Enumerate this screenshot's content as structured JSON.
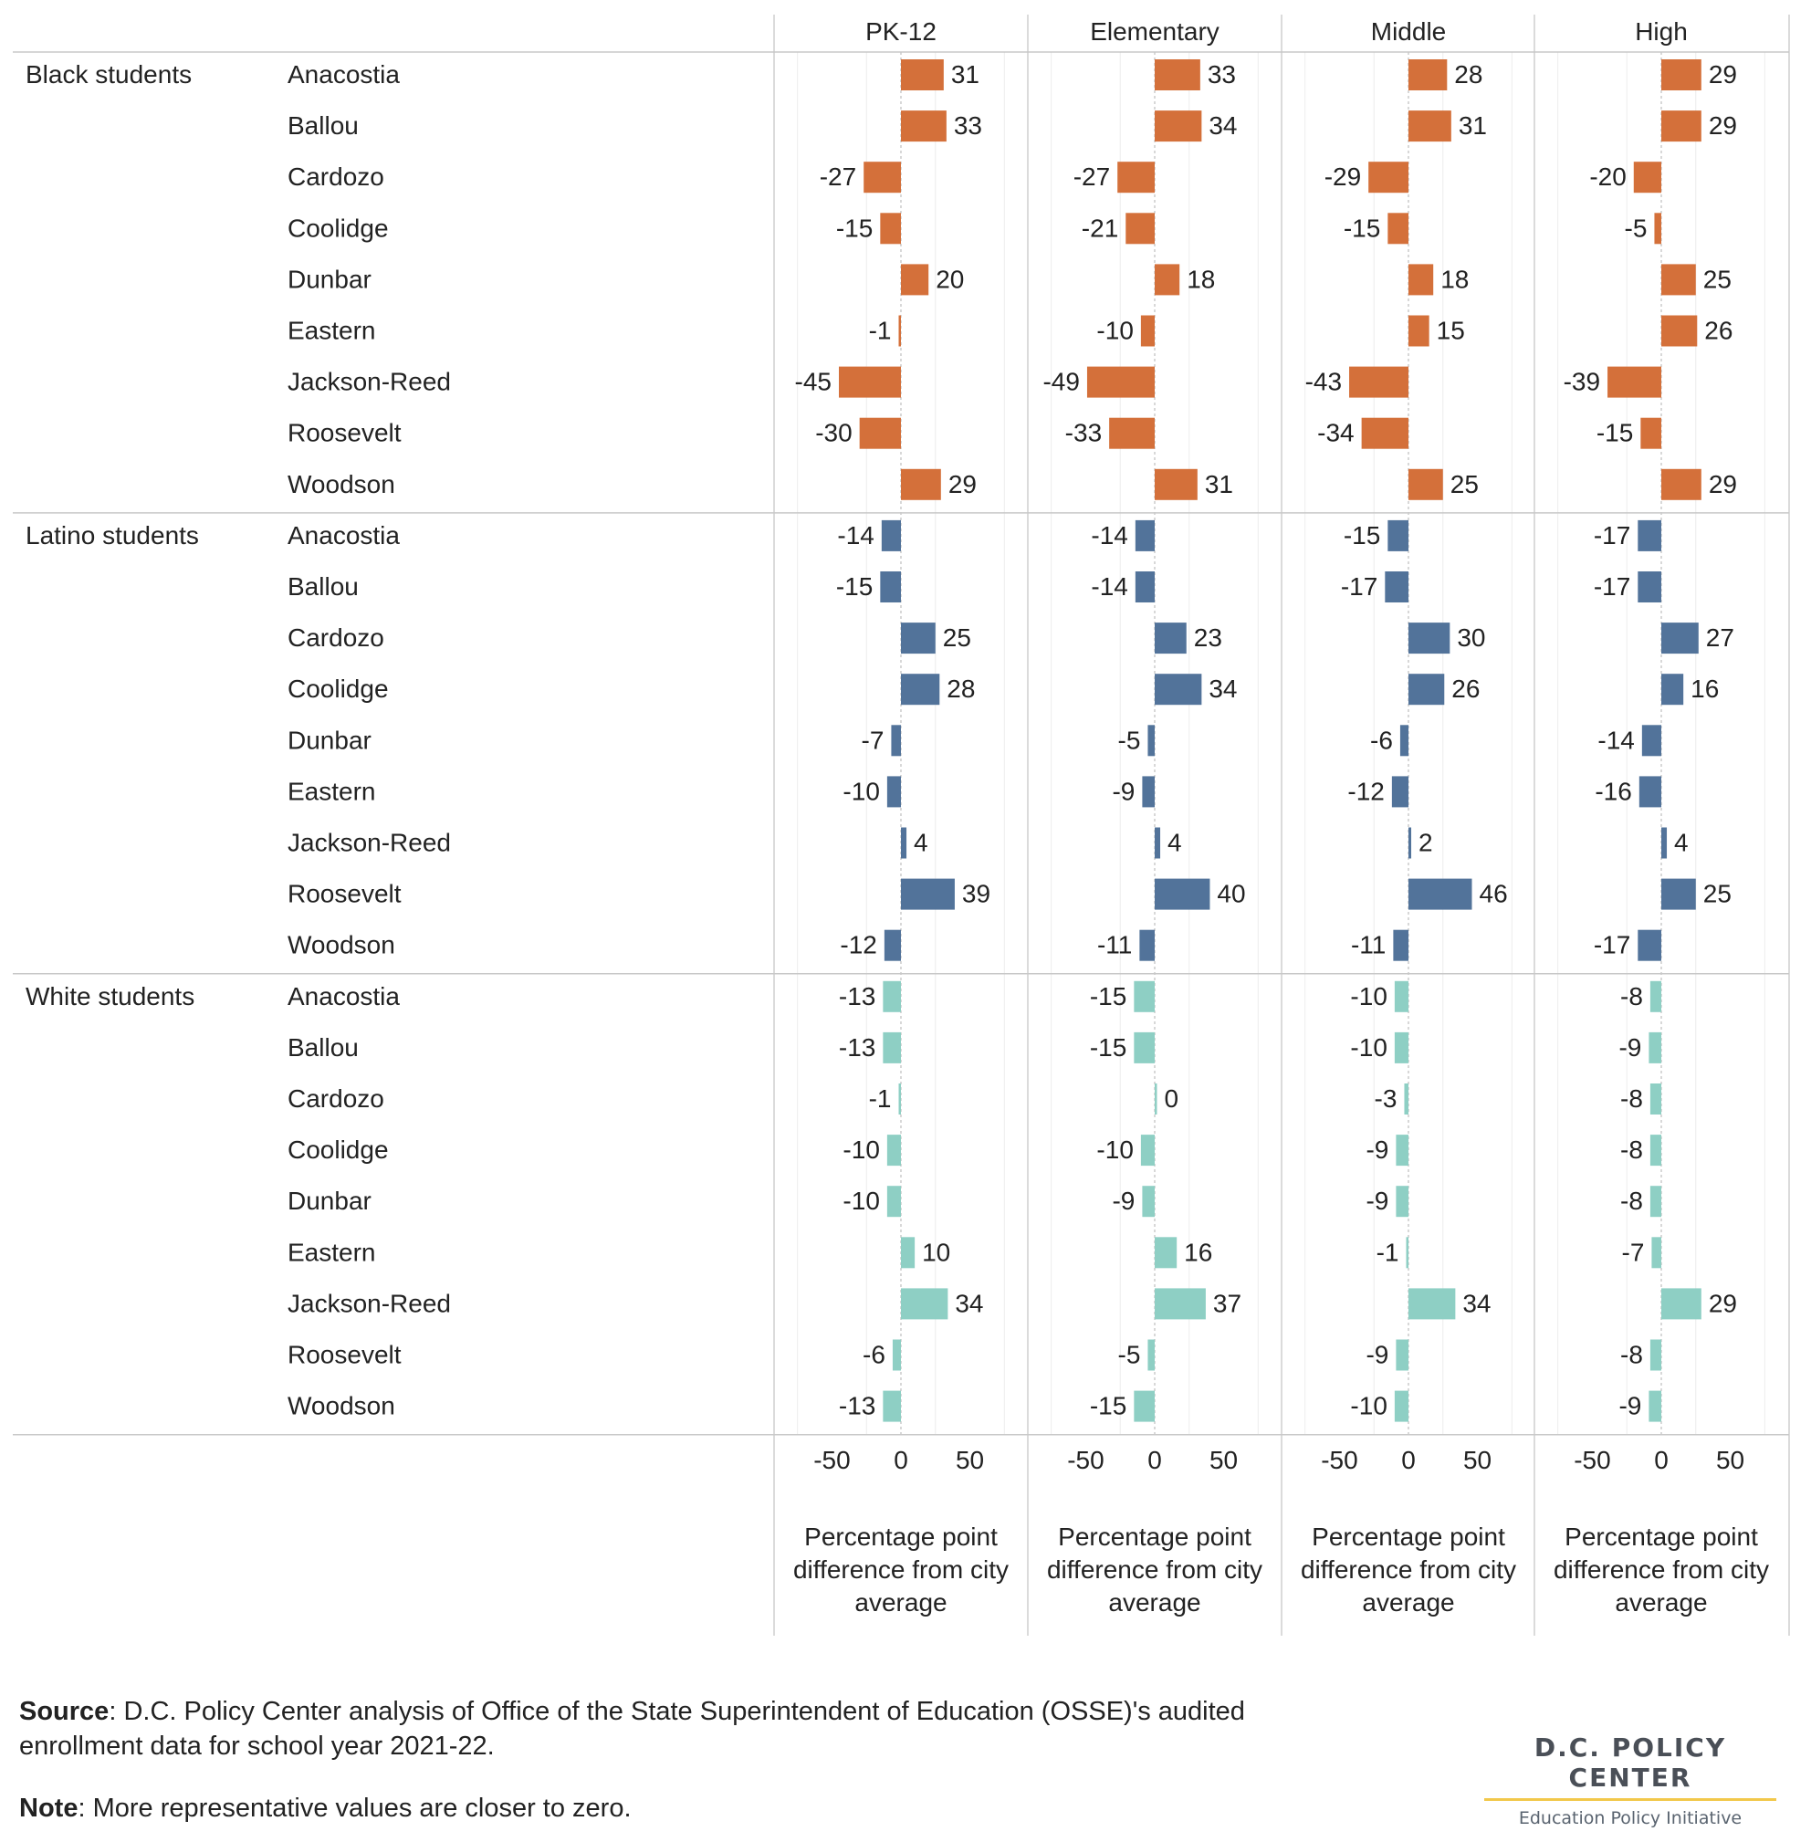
{
  "chart_data": {
    "type": "bar",
    "orientation": "horizontal",
    "panels": [
      "PK-12",
      "Elementary",
      "Middle",
      "High"
    ],
    "groups": [
      {
        "name": "Black students",
        "color": "#d4703a",
        "schools": [
          "Anacostia",
          "Ballou",
          "Cardozo",
          "Coolidge",
          "Dunbar",
          "Eastern",
          "Jackson-Reed",
          "Roosevelt",
          "Woodson"
        ],
        "values": {
          "PK-12": [
            31,
            33,
            -27,
            -15,
            20,
            -1,
            -45,
            -30,
            29
          ],
          "Elementary": [
            33,
            34,
            -27,
            -21,
            18,
            -10,
            -49,
            -33,
            31
          ],
          "Middle": [
            28,
            31,
            -29,
            -15,
            18,
            15,
            -43,
            -34,
            25
          ],
          "High": [
            29,
            29,
            -20,
            -5,
            25,
            26,
            -39,
            -15,
            29
          ]
        }
      },
      {
        "name": "Latino students",
        "color": "#52739a",
        "schools": [
          "Anacostia",
          "Ballou",
          "Cardozo",
          "Coolidge",
          "Dunbar",
          "Eastern",
          "Jackson-Reed",
          "Roosevelt",
          "Woodson"
        ],
        "values": {
          "PK-12": [
            -14,
            -15,
            25,
            28,
            -7,
            -10,
            4,
            39,
            -12
          ],
          "Elementary": [
            -14,
            -14,
            23,
            34,
            -5,
            -9,
            4,
            40,
            -11
          ],
          "Middle": [
            -15,
            -17,
            30,
            26,
            -6,
            -12,
            2,
            46,
            -11
          ],
          "High": [
            -17,
            -17,
            27,
            16,
            -14,
            -16,
            4,
            25,
            -17
          ]
        }
      },
      {
        "name": "White students",
        "color": "#8ecfc4",
        "schools": [
          "Anacostia",
          "Ballou",
          "Cardozo",
          "Coolidge",
          "Dunbar",
          "Eastern",
          "Jackson-Reed",
          "Roosevelt",
          "Woodson"
        ],
        "values": {
          "PK-12": [
            -13,
            -13,
            -1,
            -10,
            -10,
            10,
            34,
            -6,
            -13
          ],
          "Elementary": [
            -15,
            -15,
            0,
            -10,
            -9,
            16,
            37,
            -5,
            -15
          ],
          "Middle": [
            -10,
            -10,
            -3,
            -9,
            -9,
            -1,
            34,
            -9,
            -10
          ],
          "High": [
            -8,
            -9,
            -8,
            -8,
            -8,
            -7,
            29,
            -8,
            -9
          ]
        }
      }
    ],
    "xlim": [
      -92,
      92
    ],
    "xticks": [
      "-50",
      "0",
      "50"
    ],
    "xtick_values": [
      -50,
      0,
      50
    ],
    "gridlines": [
      -75,
      -25,
      25,
      75
    ],
    "xlabel_lines": [
      "Percentage point",
      "difference from city",
      "average"
    ],
    "grid": true,
    "legend": "none"
  },
  "footer": {
    "source_label": "Source",
    "source_text": ": D.C. Policy Center analysis of Office of the State Superintendent of Education (OSSE)'s audited enrollment data for school year 2021-22.",
    "note_label": "Note",
    "note_text": ": More representative values are closer to zero."
  },
  "logo": {
    "name": "D.C. POLICY CENTER",
    "subtitle": "Education Policy Initiative"
  }
}
